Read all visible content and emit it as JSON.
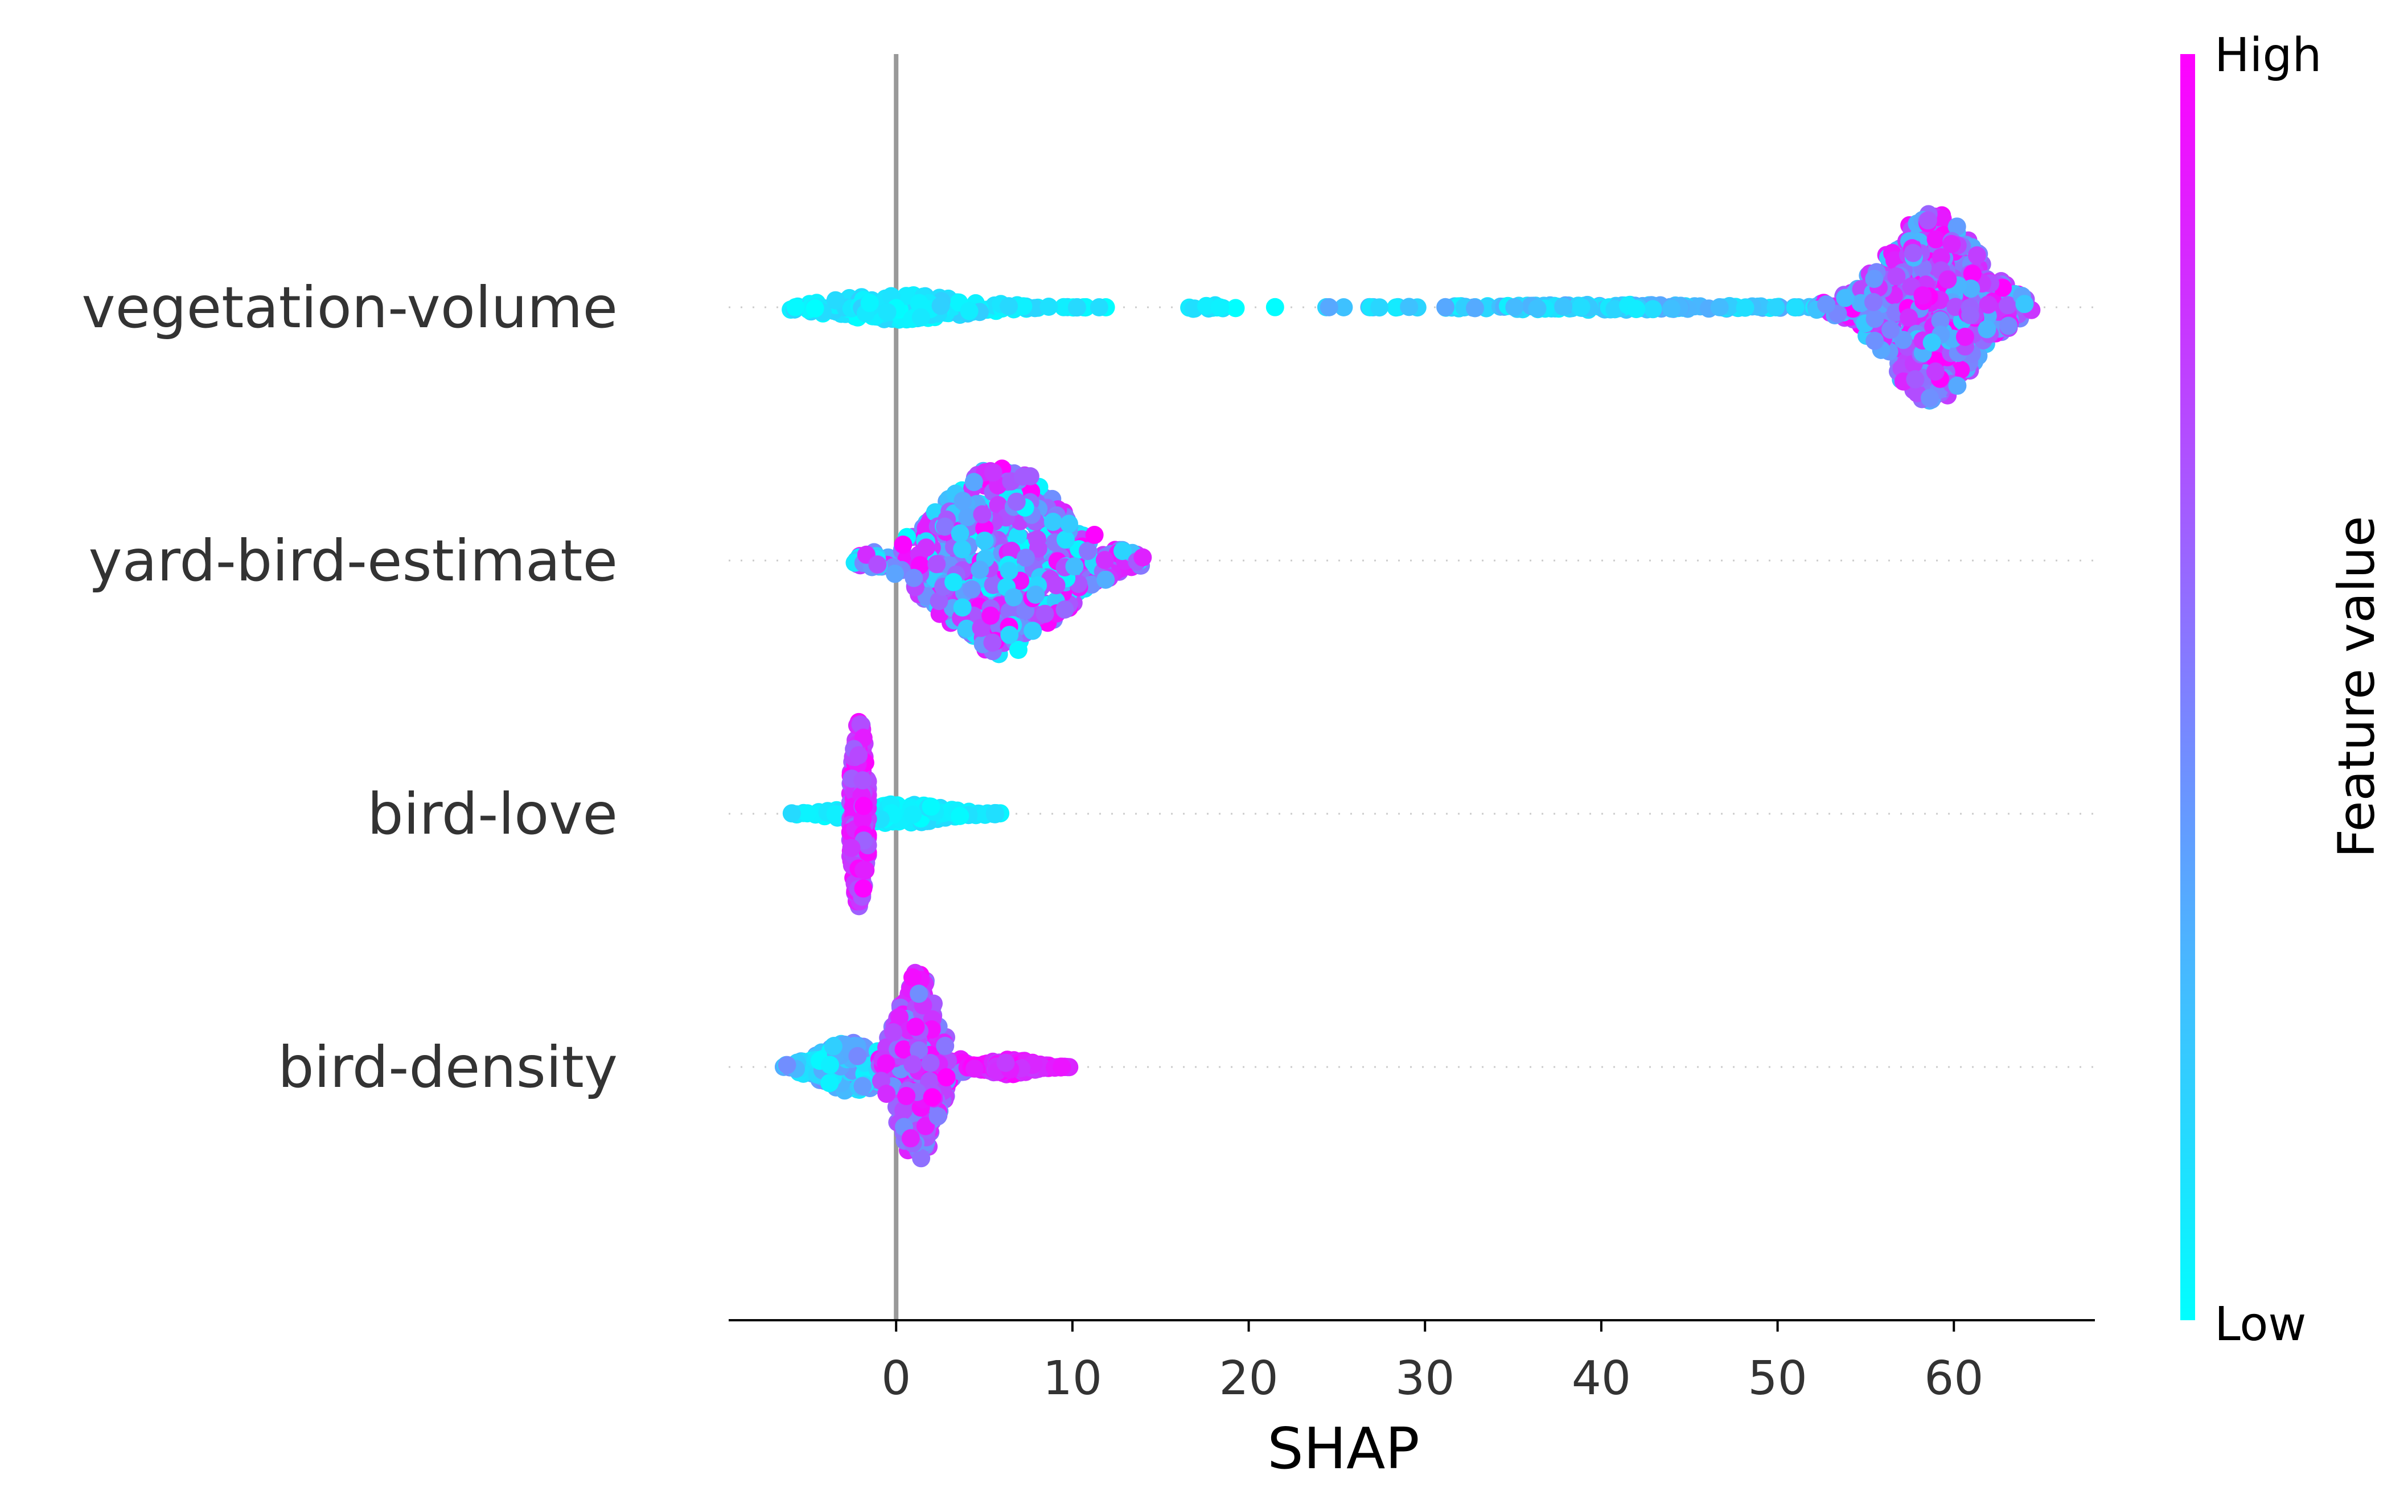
{
  "chart_data": {
    "type": "scatter",
    "subtype": "shap-beeswarm",
    "title": "",
    "xlabel": "SHAP",
    "ylabel": "",
    "xlim": [
      -9.5,
      68
    ],
    "xticks": [
      0,
      10,
      20,
      30,
      40,
      50,
      60
    ],
    "grid": false,
    "zero_line": 0,
    "colormap": {
      "low_color": "#00ffff",
      "high_color": "#ff00ff",
      "label": "Feature value",
      "low_label": "Low",
      "high_label": "High"
    },
    "features": [
      {
        "name": "vegetation-volume",
        "clusters": [
          {
            "x": [
              -6,
              12
            ],
            "peak": 0,
            "n": 220,
            "maxw": 0.1,
            "hue": [
              0.0,
              0.2
            ]
          },
          {
            "x": [
              14.5,
              21.5
            ],
            "peak": 18,
            "n": 12,
            "maxw": 0.02,
            "hue": [
              0.0,
              0.15
            ]
          },
          {
            "x": [
              24,
              55
            ],
            "peak": 40,
            "n": 160,
            "maxw": 0.02,
            "hue": [
              0.05,
              0.35
            ]
          },
          {
            "x": [
              52,
              64.5
            ],
            "peak": 58.8,
            "n": 600,
            "maxw": 0.75,
            "hue": [
              0.2,
              1.0
            ]
          }
        ]
      },
      {
        "name": "yard-bird-estimate",
        "clusters": [
          {
            "x": [
              -2.5,
              14
            ],
            "peak": 6,
            "n": 600,
            "maxw": 0.75,
            "hue": [
              0.0,
              1.0
            ]
          }
        ]
      },
      {
        "name": "bird-love",
        "clusters": [
          {
            "x": [
              -6,
              6
            ],
            "peak": 0,
            "n": 170,
            "maxw": 0.08,
            "hue": [
              0.0,
              0.15
            ]
          },
          {
            "x": [
              -2.6,
              -1.6
            ],
            "peak": -2.1,
            "n": 260,
            "maxw": 0.75,
            "hue": [
              0.6,
              1.0
            ]
          }
        ]
      },
      {
        "name": "bird-density",
        "clusters": [
          {
            "x": [
              -6.5,
              2
            ],
            "peak": -2.5,
            "n": 260,
            "maxw": 0.2,
            "hue": [
              0.0,
              0.5
            ]
          },
          {
            "x": [
              -1,
              4.5
            ],
            "peak": 1.2,
            "n": 380,
            "maxw": 0.75,
            "hue": [
              0.4,
              1.0
            ]
          },
          {
            "x": [
              4,
              10
            ],
            "peak": 6.5,
            "n": 160,
            "maxw": 0.06,
            "hue": [
              0.75,
              1.0
            ]
          }
        ]
      }
    ]
  }
}
